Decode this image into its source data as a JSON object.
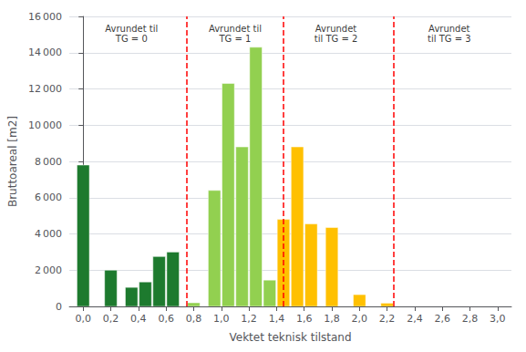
{
  "chart_data": {
    "type": "bar",
    "x": [
      0.0,
      0.2,
      0.4,
      0.4,
      0.6,
      0.6,
      0.8,
      1.0,
      1.0,
      1.2,
      1.2,
      1.4,
      1.4,
      1.6,
      1.6,
      1.8,
      2.0,
      2.2
    ],
    "values": [
      7800,
      2000,
      1050,
      1350,
      2750,
      3000,
      200,
      6400,
      12300,
      8800,
      14300,
      1450,
      4800,
      8800,
      4550,
      4350,
      650,
      180
    ],
    "colors": [
      "#1d7a2e",
      "#1d7a2e",
      "#1d7a2e",
      "#1d7a2e",
      "#1d7a2e",
      "#1d7a2e",
      "#92d050",
      "#92d050",
      "#92d050",
      "#92d050",
      "#92d050",
      "#92d050",
      "#ffc000",
      "#ffc000",
      "#ffc000",
      "#ffc000",
      "#ffc000",
      "#ffc000"
    ],
    "xlabel": "Vektet teknisk tilstand",
    "ylabel": "Bruttoareal [m2]",
    "xlim": [
      -0.1,
      3.1
    ],
    "ylim": [
      0,
      16000
    ],
    "xticks": [
      {
        "value": 0.0,
        "label": "0,0"
      },
      {
        "value": 0.2,
        "label": "0,2"
      },
      {
        "value": 0.4,
        "label": "0,4"
      },
      {
        "value": 0.6,
        "label": "0,6"
      },
      {
        "value": 0.8,
        "label": "0,8"
      },
      {
        "value": 1.0,
        "label": "1,0"
      },
      {
        "value": 1.2,
        "label": "1,2"
      },
      {
        "value": 1.4,
        "label": "1,4"
      },
      {
        "value": 1.6,
        "label": "1,6"
      },
      {
        "value": 1.8,
        "label": "1,8"
      },
      {
        "value": 2.0,
        "label": "2,0"
      },
      {
        "value": 2.2,
        "label": "2,2"
      },
      {
        "value": 2.4,
        "label": "2,4"
      },
      {
        "value": 2.6,
        "label": "2,6"
      },
      {
        "value": 2.8,
        "label": "2,8"
      },
      {
        "value": 3.0,
        "label": "3,0"
      }
    ],
    "yticks": [
      0,
      {
        "value": 2000,
        "label": "2 000"
      },
      {
        "value": 4000,
        "label": "4 000"
      },
      {
        "value": 6000,
        "label": "6 000"
      },
      {
        "value": 8000,
        "label": "8 000"
      },
      {
        "value": 10000,
        "label": "10 000"
      },
      {
        "value": 12000,
        "label": "12 000"
      },
      {
        "value": 14000,
        "label": "14 000"
      },
      {
        "value": 16000,
        "label": "16 000"
      }
    ],
    "grid": true,
    "vlines": {
      "x": [
        0.75,
        1.45,
        2.25
      ],
      "color": "red",
      "line_style": "dashed"
    },
    "annotations": [
      {
        "x": 0.35,
        "y": 15600,
        "text": "Avrundet til\nTG = 0"
      },
      {
        "x": 1.1,
        "y": 15600,
        "text": "Avrundet til\nTG = 1"
      },
      {
        "x": 1.83,
        "y": 15600,
        "text": "Avrundet\ntil TG = 2"
      },
      {
        "x": 2.65,
        "y": 15600,
        "text": "Avrundet\ntil TG = 3"
      }
    ]
  }
}
